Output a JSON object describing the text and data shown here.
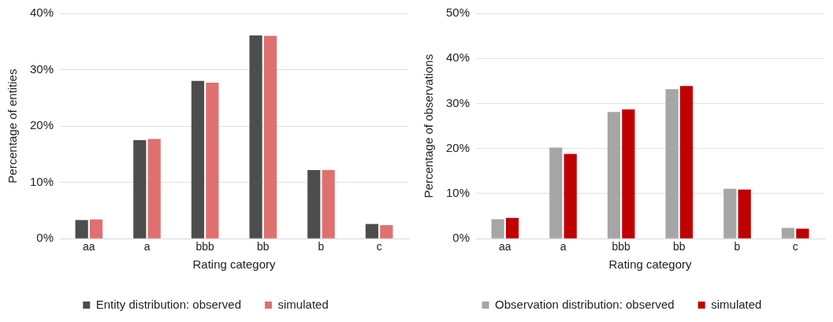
{
  "chart_data": [
    {
      "type": "bar",
      "xlabel": "Rating category",
      "ylabel": "Percentage of entities",
      "categories": [
        "aa",
        "a",
        "bbb",
        "bb",
        "b",
        "c"
      ],
      "series": [
        {
          "name": "Entity distribution: observed",
          "color": "#4d4d4d",
          "values": [
            3.3,
            17.5,
            28.0,
            36.1,
            12.2,
            2.6
          ]
        },
        {
          "name": "simulated",
          "color": "#e07070",
          "values": [
            3.4,
            17.7,
            27.7,
            36.0,
            12.2,
            2.4
          ]
        }
      ],
      "ylim": [
        0,
        40
      ],
      "yticks": [
        {
          "value": 0,
          "label": "0%"
        },
        {
          "value": 10,
          "label": "10%"
        },
        {
          "value": 20,
          "label": "20%"
        },
        {
          "value": 30,
          "label": "30%"
        },
        {
          "value": 40,
          "label": "40%"
        }
      ],
      "grid": "y",
      "legend": "bottom"
    },
    {
      "type": "bar",
      "xlabel": "Rating category",
      "ylabel": "Percentage of observations",
      "categories": [
        "aa",
        "a",
        "bbb",
        "bb",
        "b",
        "c"
      ],
      "series": [
        {
          "name": "Observation distribution: observed",
          "color": "#a6a6a6",
          "values": [
            4.3,
            20.2,
            28.1,
            33.2,
            11.1,
            2.4
          ]
        },
        {
          "name": "simulated",
          "color": "#c00000",
          "values": [
            4.6,
            18.8,
            28.7,
            33.9,
            10.9,
            2.2
          ]
        }
      ],
      "ylim": [
        0,
        50
      ],
      "yticks": [
        {
          "value": 0,
          "label": "0%"
        },
        {
          "value": 10,
          "label": "10%"
        },
        {
          "value": 20,
          "label": "20%"
        },
        {
          "value": 30,
          "label": "30%"
        },
        {
          "value": 40,
          "label": "40%"
        },
        {
          "value": 50,
          "label": "50%"
        }
      ],
      "grid": "y",
      "legend": "bottom"
    }
  ]
}
